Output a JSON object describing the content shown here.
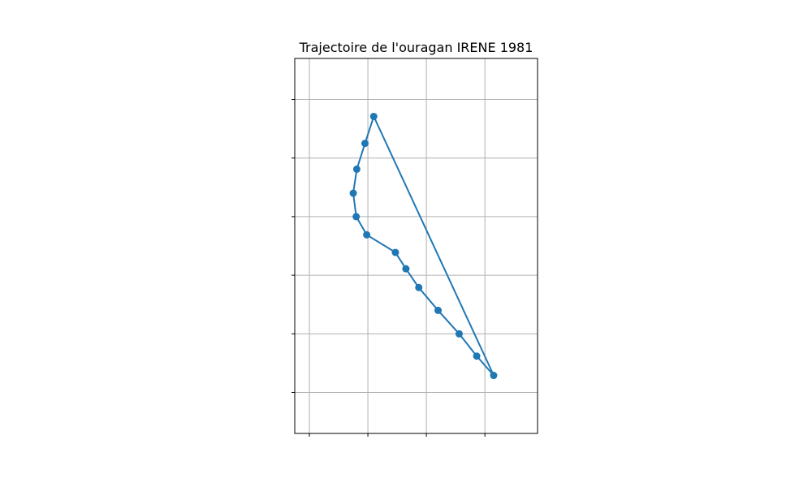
{
  "chart_data": {
    "type": "line",
    "title": "Trajectoire de l'ouragan IRENE 1981",
    "xlabel": "",
    "ylabel": "",
    "x_tick_labels": [],
    "y_tick_labels": [],
    "grid": true,
    "xlim": [
      -0.25,
      3.9
    ],
    "ylim": [
      -0.7,
      5.7
    ],
    "x_gridlines": [
      0,
      1,
      2,
      3
    ],
    "y_gridlines": [
      0,
      1,
      2,
      3,
      4,
      5
    ],
    "series": [
      {
        "color": "#1f77b4",
        "marker": "circle",
        "closed_path": true,
        "points": [
          {
            "x": 3.15,
            "y": 0.29
          },
          {
            "x": 2.86,
            "y": 0.62
          },
          {
            "x": 2.56,
            "y": 1.0
          },
          {
            "x": 2.2,
            "y": 1.4
          },
          {
            "x": 1.87,
            "y": 1.79
          },
          {
            "x": 1.65,
            "y": 2.11
          },
          {
            "x": 1.47,
            "y": 2.39
          },
          {
            "x": 0.98,
            "y": 2.69
          },
          {
            "x": 0.8,
            "y": 3.0
          },
          {
            "x": 0.75,
            "y": 3.4
          },
          {
            "x": 0.81,
            "y": 3.81
          },
          {
            "x": 0.95,
            "y": 4.25
          },
          {
            "x": 1.1,
            "y": 4.71
          }
        ]
      }
    ],
    "colors": {
      "series": "#1f77b4",
      "grid": "#b0b0b0",
      "axes": "#000000",
      "background": "#ffffff"
    }
  }
}
